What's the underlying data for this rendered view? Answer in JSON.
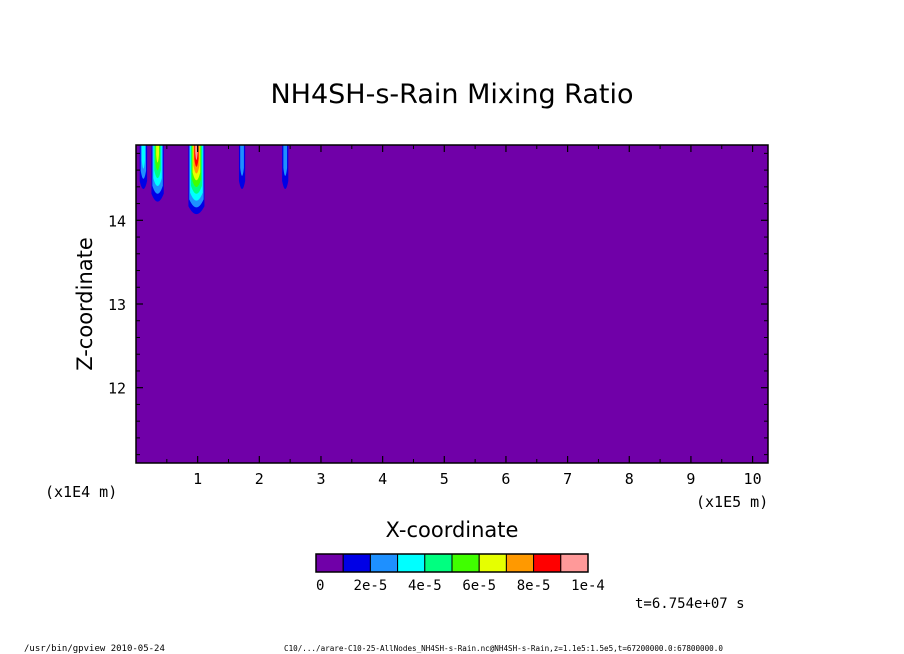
{
  "chart_data": {
    "type": "heatmap",
    "title": "NH4SH-s-Rain Mixing Ratio",
    "xlabel": "X-coordinate",
    "ylabel": "Z-coordinate",
    "x_ticks": [
      "1",
      "2",
      "3",
      "4",
      "5",
      "6",
      "7",
      "8",
      "9",
      "10"
    ],
    "y_ticks": [
      "12",
      "13",
      "14"
    ],
    "x_unit": "(x1E5 m)",
    "y_unit": "(x1E4 m)",
    "xlim": [
      0,
      10.25
    ],
    "ylim": [
      11.1,
      14.9
    ],
    "background_value": 0,
    "colorbar": {
      "colors": [
        "#7000a8",
        "#0000e6",
        "#1e90ff",
        "#00ffff",
        "#00ff80",
        "#40ff00",
        "#e6ff00",
        "#ff9900",
        "#ff0000",
        "#ff9999"
      ],
      "labels": [
        "0",
        "2e-5",
        "4e-5",
        "6e-5",
        "8e-5",
        "1e-4"
      ],
      "bounds": [
        0,
        1e-05,
        2e-05,
        3e-05,
        4e-05,
        5e-05,
        6e-05,
        7e-05,
        8e-05,
        9e-05,
        0.0001
      ]
    },
    "plumes": [
      {
        "x": 0.12,
        "halfwidth": 0.06,
        "z_bottom": 14.35,
        "levels": [
          1,
          2,
          3
        ]
      },
      {
        "x": 0.35,
        "halfwidth": 0.1,
        "z_bottom": 14.2,
        "levels": [
          1,
          2,
          3,
          4,
          5,
          6
        ]
      },
      {
        "x": 0.98,
        "halfwidth": 0.13,
        "z_bottom": 14.05,
        "levels": [
          1,
          2,
          3,
          4,
          5,
          6,
          7,
          8,
          9
        ]
      },
      {
        "x": 1.72,
        "halfwidth": 0.05,
        "z_bottom": 14.35,
        "levels": [
          1,
          2
        ]
      },
      {
        "x": 2.42,
        "halfwidth": 0.05,
        "z_bottom": 14.35,
        "levels": [
          1,
          2
        ]
      }
    ]
  },
  "time_label": "t=6.754e+07 s",
  "footer": {
    "left": "/usr/bin/gpview  2010-05-24",
    "right": "C10/.../arare-C10-25-AllNodes_NH4SH-s-Rain.nc@NH4SH-s-Rain,z=1.1e5:1.5e5,t=67200000.0:67800000.0"
  }
}
